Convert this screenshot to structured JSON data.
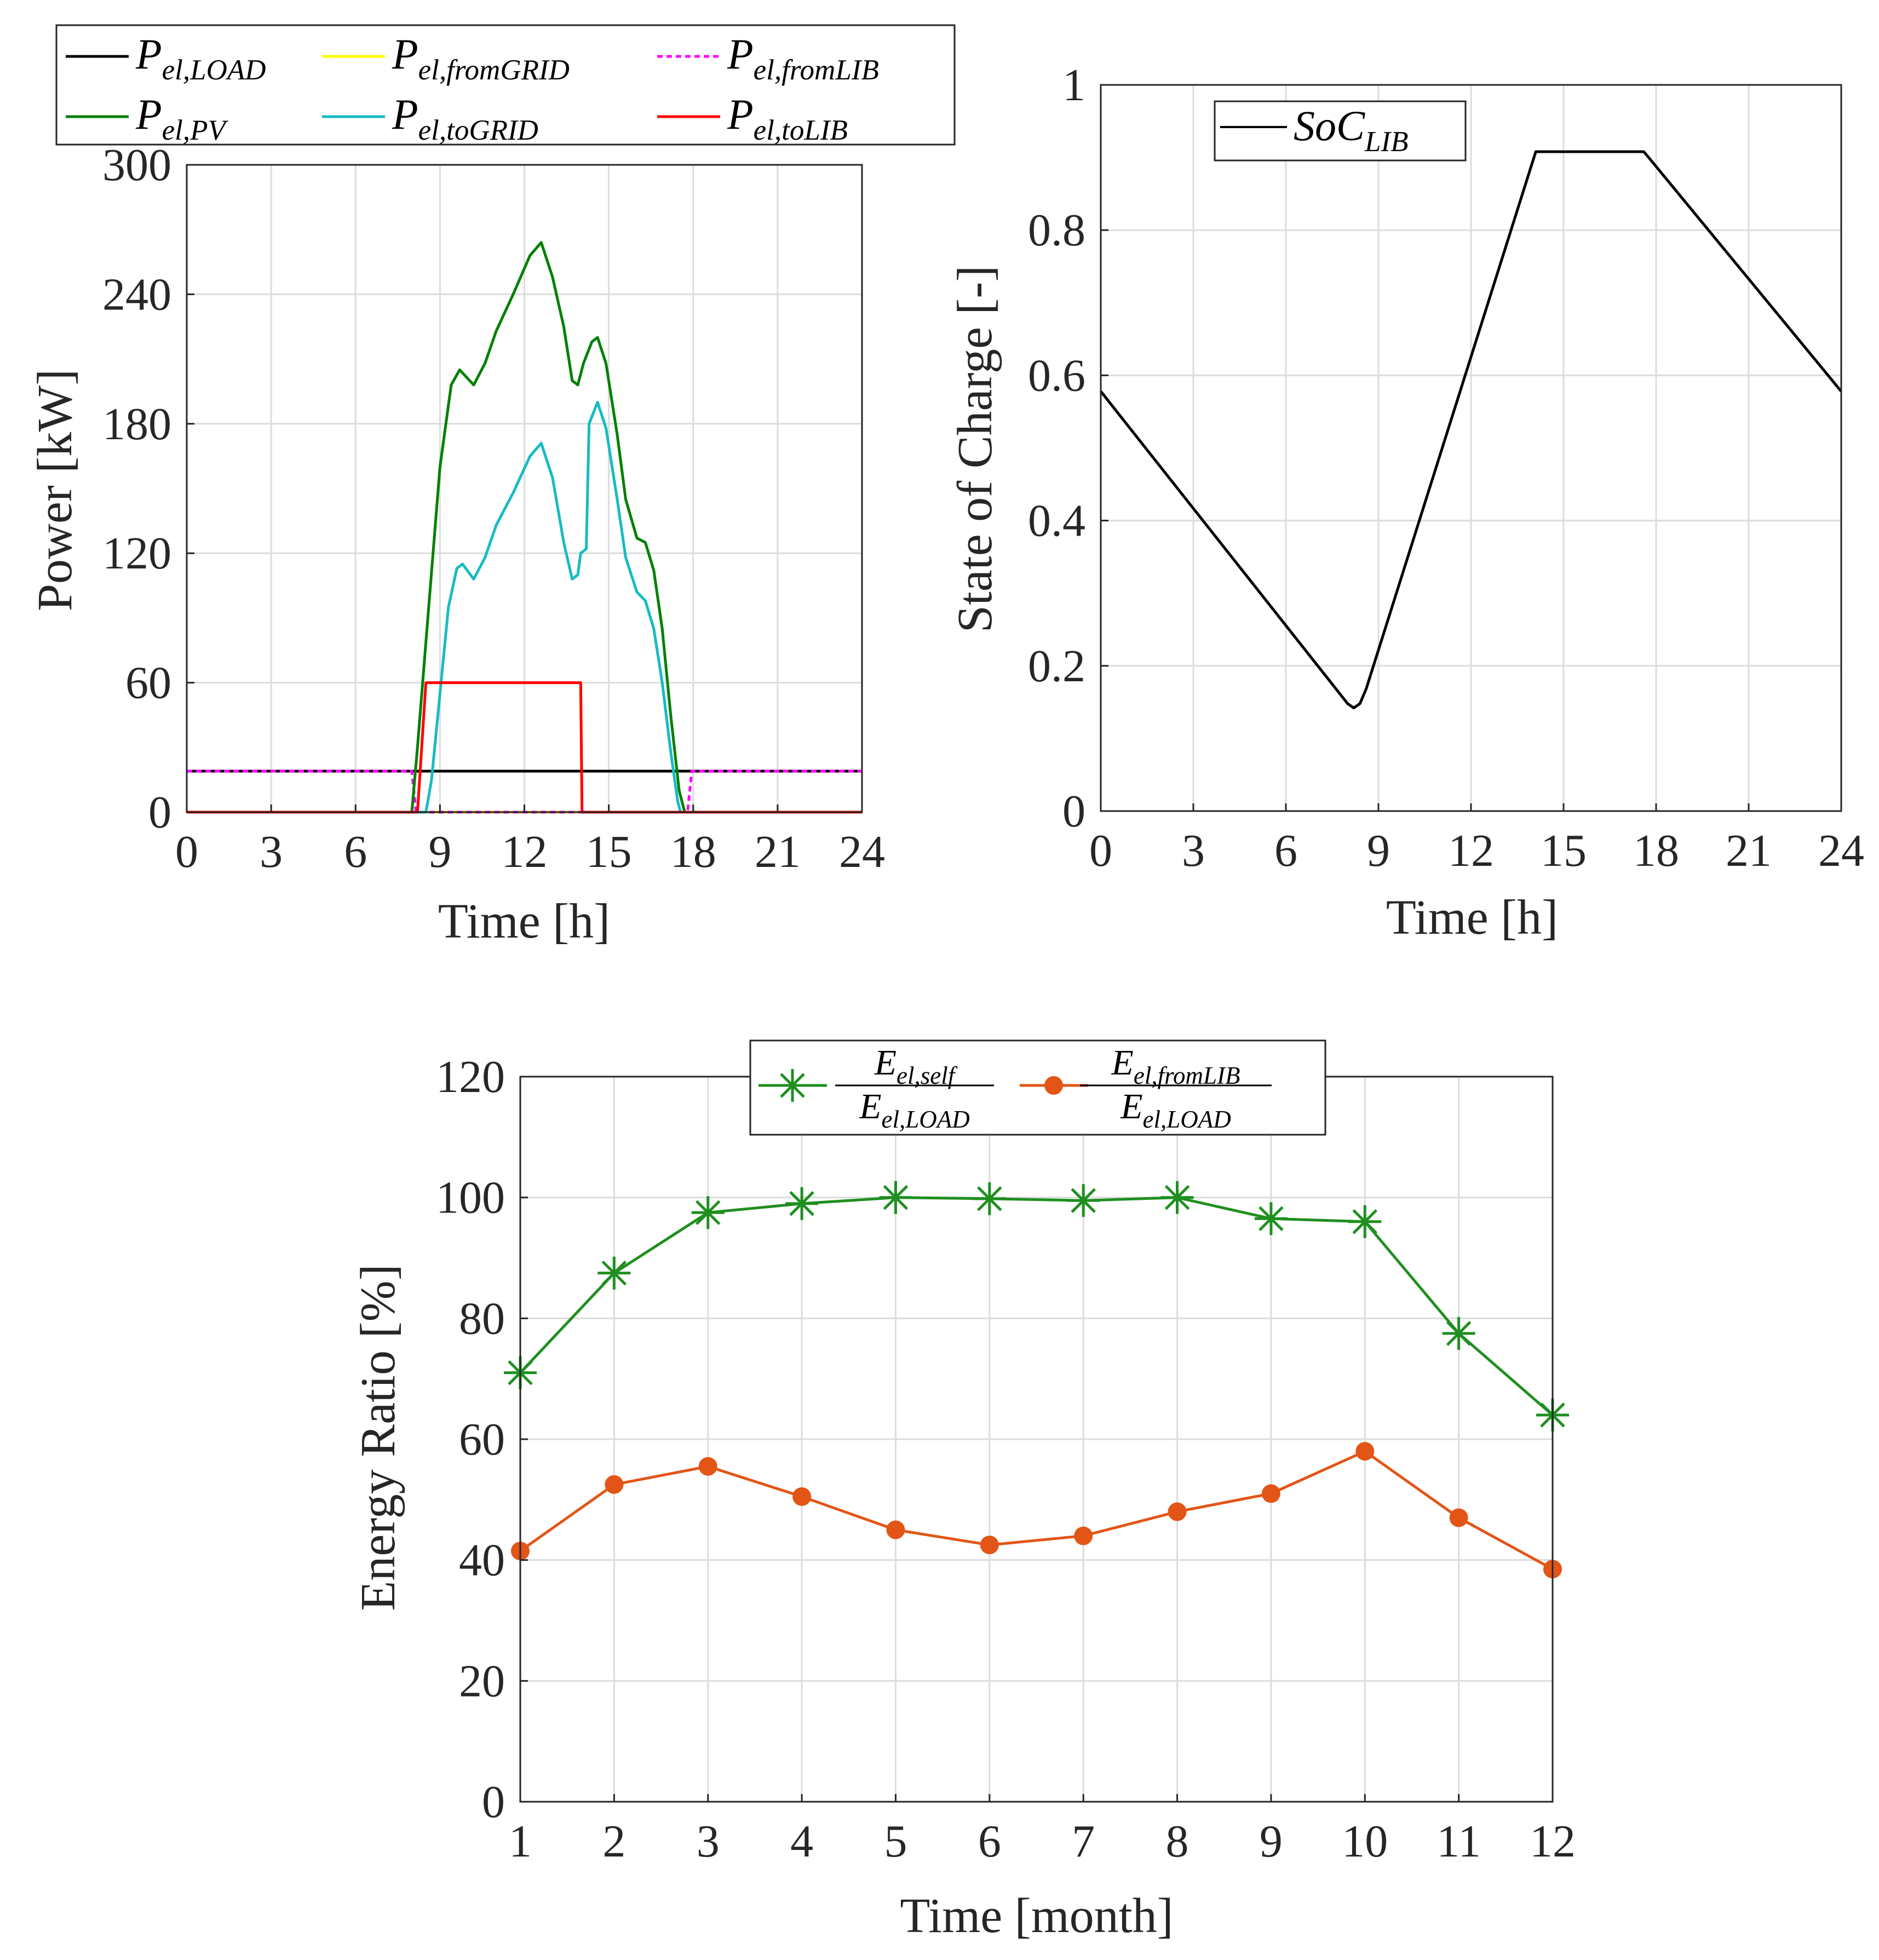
{
  "charts": [
    {
      "id": "power",
      "chart_data": {
        "type": "line",
        "xlabel": "Time [h]",
        "ylabel": "Power [kW]",
        "xlim": [
          0,
          24
        ],
        "ylim": [
          0,
          300
        ],
        "xticks": [
          0,
          3,
          6,
          9,
          12,
          15,
          18,
          21,
          24
        ],
        "yticks": [
          0,
          60,
          120,
          180,
          240,
          300
        ],
        "grid": true,
        "legend_position": "top, outside",
        "series": [
          {
            "name": "P_el,LOAD",
            "main": "P",
            "sub": "el,LOAD",
            "color": "#000000",
            "dash": "",
            "points": [
              [
                0,
                19
              ],
              [
                24,
                19
              ]
            ]
          },
          {
            "name": "P_el,fromGRID",
            "main": "P",
            "sub": "el,fromGRID",
            "color": "#ffff00",
            "dash": "",
            "points": [
              [
                0,
                0
              ],
              [
                24,
                0
              ]
            ]
          },
          {
            "name": "P_el,fromLIB",
            "main": "P",
            "sub": "el,fromLIB",
            "color": "#ff00ff",
            "dash": "10,7",
            "points": [
              [
                0,
                19
              ],
              [
                8.0,
                19
              ],
              [
                8.15,
                0
              ],
              [
                17.8,
                0
              ],
              [
                17.95,
                19
              ],
              [
                24,
                19
              ]
            ]
          },
          {
            "name": "P_el,PV",
            "main": "P",
            "sub": "el,PV",
            "color": "#008000",
            "dash": "",
            "points": [
              [
                0,
                0
              ],
              [
                8.0,
                0
              ],
              [
                8.2,
                30
              ],
              [
                8.6,
                95
              ],
              [
                9.0,
                160
              ],
              [
                9.4,
                198
              ],
              [
                9.7,
                205
              ],
              [
                10.2,
                198
              ],
              [
                10.6,
                208
              ],
              [
                11.0,
                223
              ],
              [
                11.6,
                240
              ],
              [
                12.2,
                258
              ],
              [
                12.6,
                264
              ],
              [
                13.0,
                248
              ],
              [
                13.4,
                225
              ],
              [
                13.7,
                200
              ],
              [
                13.9,
                198
              ],
              [
                14.1,
                208
              ],
              [
                14.4,
                218
              ],
              [
                14.6,
                220
              ],
              [
                14.9,
                208
              ],
              [
                15.3,
                175
              ],
              [
                15.6,
                145
              ],
              [
                16.0,
                127
              ],
              [
                16.3,
                125
              ],
              [
                16.6,
                112
              ],
              [
                16.9,
                85
              ],
              [
                17.2,
                45
              ],
              [
                17.5,
                10
              ],
              [
                17.7,
                0
              ],
              [
                24,
                0
              ]
            ]
          },
          {
            "name": "P_el,toGRID",
            "main": "P",
            "sub": "el,toGRID",
            "color": "#17bbc4",
            "dash": "",
            "points": [
              [
                0,
                0
              ],
              [
                8.5,
                0
              ],
              [
                8.7,
                15
              ],
              [
                9.0,
                55
              ],
              [
                9.3,
                95
              ],
              [
                9.6,
                113
              ],
              [
                9.8,
                115
              ],
              [
                10.2,
                108
              ],
              [
                10.6,
                118
              ],
              [
                11.0,
                133
              ],
              [
                11.6,
                148
              ],
              [
                12.2,
                165
              ],
              [
                12.6,
                171
              ],
              [
                13.0,
                155
              ],
              [
                13.4,
                125
              ],
              [
                13.7,
                108
              ],
              [
                13.9,
                110
              ],
              [
                14.0,
                120
              ],
              [
                14.2,
                122
              ],
              [
                14.3,
                180
              ],
              [
                14.6,
                190
              ],
              [
                14.9,
                178
              ],
              [
                15.3,
                145
              ],
              [
                15.6,
                118
              ],
              [
                16.0,
                102
              ],
              [
                16.3,
                98
              ],
              [
                16.6,
                85
              ],
              [
                16.9,
                60
              ],
              [
                17.2,
                28
              ],
              [
                17.45,
                5
              ],
              [
                17.55,
                0
              ],
              [
                24,
                0
              ]
            ]
          },
          {
            "name": "P_el,toLIB",
            "main": "P",
            "sub": "el,toLIB",
            "color": "#ff0000",
            "dash": "",
            "points": [
              [
                0,
                0
              ],
              [
                8.2,
                0
              ],
              [
                8.5,
                60
              ],
              [
                14.0,
                60
              ],
              [
                14.05,
                0
              ],
              [
                24,
                0
              ]
            ]
          }
        ]
      }
    },
    {
      "id": "soc",
      "chart_data": {
        "type": "line",
        "xlabel": "Time [h]",
        "ylabel": "State of Charge [-]",
        "xlim": [
          0,
          24
        ],
        "ylim": [
          0,
          1
        ],
        "xticks": [
          0,
          3,
          6,
          9,
          12,
          15,
          18,
          21,
          24
        ],
        "yticks": [
          0,
          0.2,
          0.4,
          0.6,
          0.8,
          1
        ],
        "ytick_labels": [
          "0",
          "0.2",
          "0.4",
          "0.6",
          "0.8",
          "1"
        ],
        "grid": true,
        "legend_position": "top-left",
        "series": [
          {
            "name": "SoC_LIB",
            "main": "SoC",
            "sub": "LIB",
            "color": "#000000",
            "dash": "",
            "points": [
              [
                0,
                0.578
              ],
              [
                8.0,
                0.148
              ],
              [
                8.2,
                0.142
              ],
              [
                8.4,
                0.148
              ],
              [
                8.6,
                0.168
              ],
              [
                14.1,
                0.908
              ],
              [
                17.6,
                0.908
              ],
              [
                17.8,
                0.898
              ],
              [
                24,
                0.578
              ]
            ]
          }
        ]
      }
    },
    {
      "id": "energy",
      "chart_data": {
        "type": "line",
        "xlabel": "Time [month]",
        "ylabel": "Energy Ratio [%]",
        "xlim": [
          1,
          12
        ],
        "ylim": [
          0,
          120
        ],
        "xticks": [
          1,
          2,
          3,
          4,
          5,
          6,
          7,
          8,
          9,
          10,
          11,
          12
        ],
        "yticks": [
          0,
          20,
          40,
          60,
          80,
          100,
          120
        ],
        "categories": [
          1,
          2,
          3,
          4,
          5,
          6,
          7,
          8,
          9,
          10,
          11,
          12
        ],
        "grid": true,
        "legend_position": "top-center",
        "series": [
          {
            "name": "E_el,self / E_el,LOAD",
            "num_main": "E",
            "num_sub": "el,self",
            "den_main": "E",
            "den_sub": "el,LOAD",
            "color": "#1f8f1f",
            "marker": "asterisk",
            "values": [
              71,
              87.5,
              97.5,
              99,
              100,
              99.8,
              99.5,
              100,
              96.5,
              96,
              77.5,
              64
            ]
          },
          {
            "name": "E_el,fromLIB / E_el,LOAD",
            "num_main": "E",
            "num_sub": "el,fromLIB",
            "den_main": "E",
            "den_sub": "el,LOAD",
            "color": "#e35516",
            "marker": "circle",
            "values": [
              41.5,
              52.5,
              55.5,
              50.5,
              45,
              42.5,
              44,
              48,
              51,
              58,
              47,
              38.5
            ]
          }
        ]
      }
    }
  ]
}
